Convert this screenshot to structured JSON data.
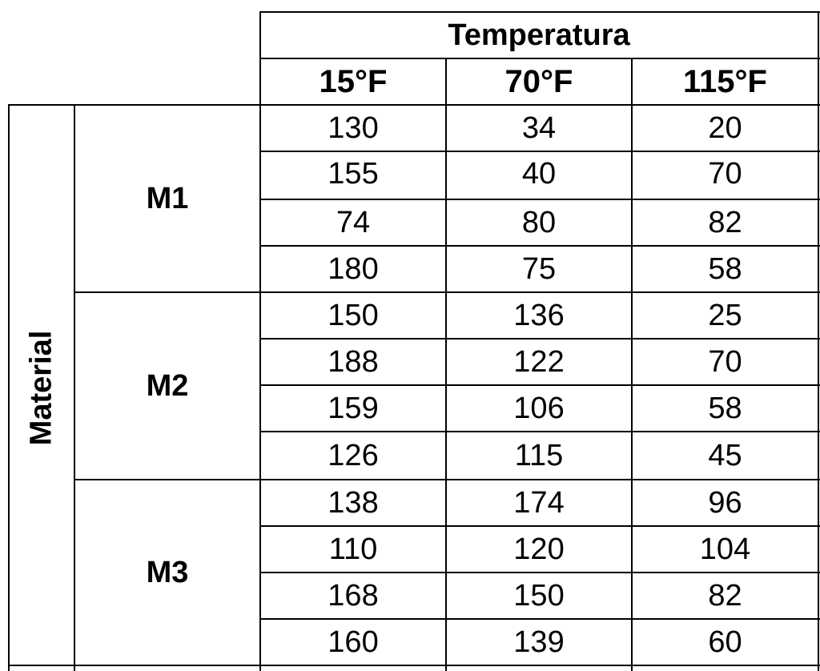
{
  "header": {
    "group": "Temperatura",
    "columns": [
      "15°F",
      "70°F",
      "115°F"
    ]
  },
  "factor": "Material",
  "groups": [
    {
      "label": "M1",
      "rows": [
        [
          "130",
          "34",
          "20"
        ],
        [
          "155",
          "40",
          "70"
        ],
        [
          "74",
          "80",
          "82"
        ],
        [
          "180",
          "75",
          "58"
        ]
      ]
    },
    {
      "label": "M2",
      "rows": [
        [
          "150",
          "136",
          "25"
        ],
        [
          "188",
          "122",
          "70"
        ],
        [
          "159",
          "106",
          "58"
        ],
        [
          "126",
          "115",
          "45"
        ]
      ]
    },
    {
      "label": "M3",
      "rows": [
        [
          "138",
          "174",
          "96"
        ],
        [
          "110",
          "120",
          "104"
        ],
        [
          "168",
          "150",
          "82"
        ],
        [
          "160",
          "139",
          "60"
        ]
      ]
    }
  ]
}
